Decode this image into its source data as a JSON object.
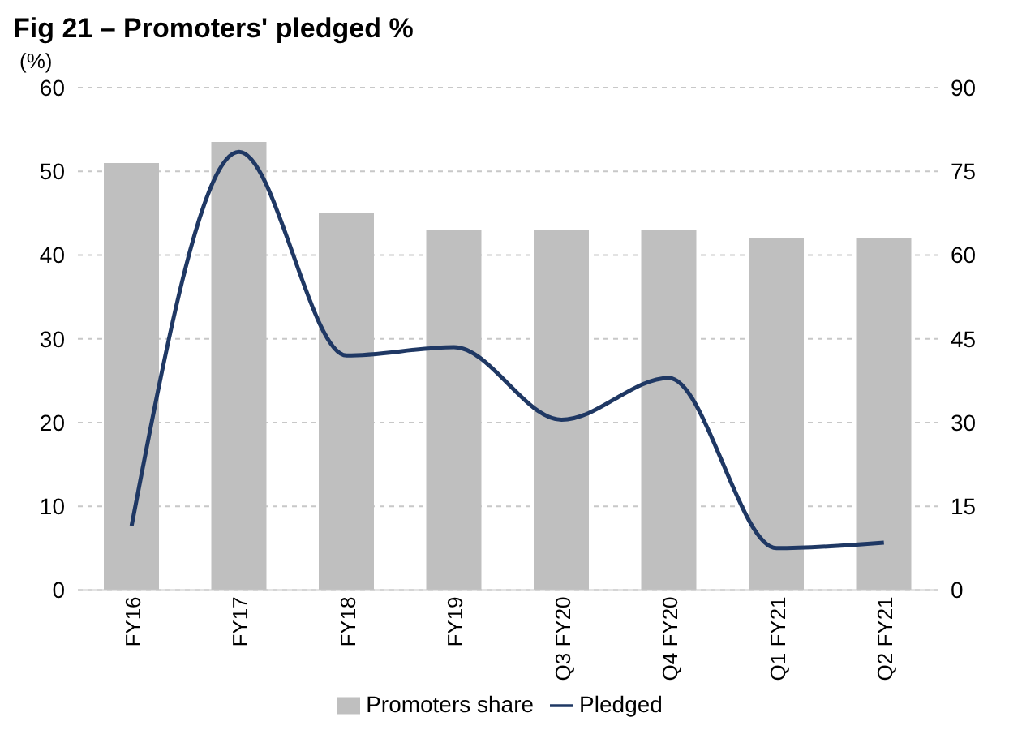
{
  "chart_data": {
    "type": "bar",
    "title": "Fig 21 – Promoters' pledged %",
    "ylabel": "(%)",
    "categories": [
      "FY16",
      "FY17",
      "FY18",
      "FY19",
      "Q3 FY20",
      "Q4 FY20",
      "Q1 FY21",
      "Q2 FY21"
    ],
    "series": [
      {
        "name": "Promoters share",
        "color": "#bfbfbf",
        "values": [
          51,
          53.5,
          45,
          43,
          43,
          43,
          42,
          42
        ]
      },
      {
        "name": "Pledged",
        "type": "line",
        "axis": "y2",
        "color": "#1f3864",
        "values": [
          11.5,
          78.5,
          42,
          43.5,
          30.5,
          38,
          7.5,
          8.5
        ]
      }
    ],
    "ylim": [
      0,
      60
    ],
    "yticks": [
      0,
      10,
      20,
      30,
      40,
      50,
      60
    ],
    "y2lim": [
      0,
      90
    ],
    "y2ticks": [
      0,
      15,
      30,
      45,
      60,
      75,
      90
    ],
    "grid": "y",
    "legend": "bottom",
    "marker": "none"
  }
}
